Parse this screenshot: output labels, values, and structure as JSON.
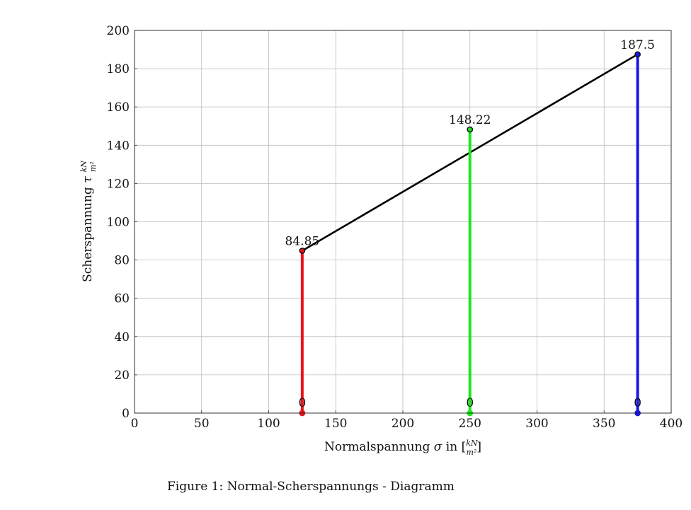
{
  "chart_data": {
    "type": "line",
    "xlabel": {
      "prefix": "Normalspannung ",
      "symbol": "σ",
      "mid": " in [",
      "numerator": "kN",
      "denominator": "m²",
      "suffix": "]"
    },
    "ylabel": {
      "prefix": "Scherspannung ",
      "symbol": "τ",
      "numerator": "kN",
      "denominator": "m²"
    },
    "xlim": [
      0,
      400
    ],
    "ylim": [
      0,
      200
    ],
    "xticks": [
      0,
      50,
      100,
      150,
      200,
      250,
      300,
      350,
      400
    ],
    "yticks": [
      0,
      20,
      40,
      60,
      80,
      100,
      120,
      140,
      160,
      180,
      200
    ],
    "grid": true,
    "verticals": [
      {
        "x": 125,
        "y": 84.85,
        "color": "#e8141c",
        "label": "84.85"
      },
      {
        "x": 250,
        "y": 148.22,
        "color": "#19e81b",
        "label": "148.22"
      },
      {
        "x": 375,
        "y": 187.5,
        "color": "#1a17e6",
        "label": "187.5"
      }
    ],
    "zero_labels": [
      "0",
      "0",
      "0"
    ],
    "envelope": {
      "color": "#000000",
      "points": [
        [
          125,
          84.85
        ],
        [
          375,
          187.5
        ]
      ]
    }
  },
  "caption": "Figure 1: Normal-Scherspannungs - Diagramm"
}
